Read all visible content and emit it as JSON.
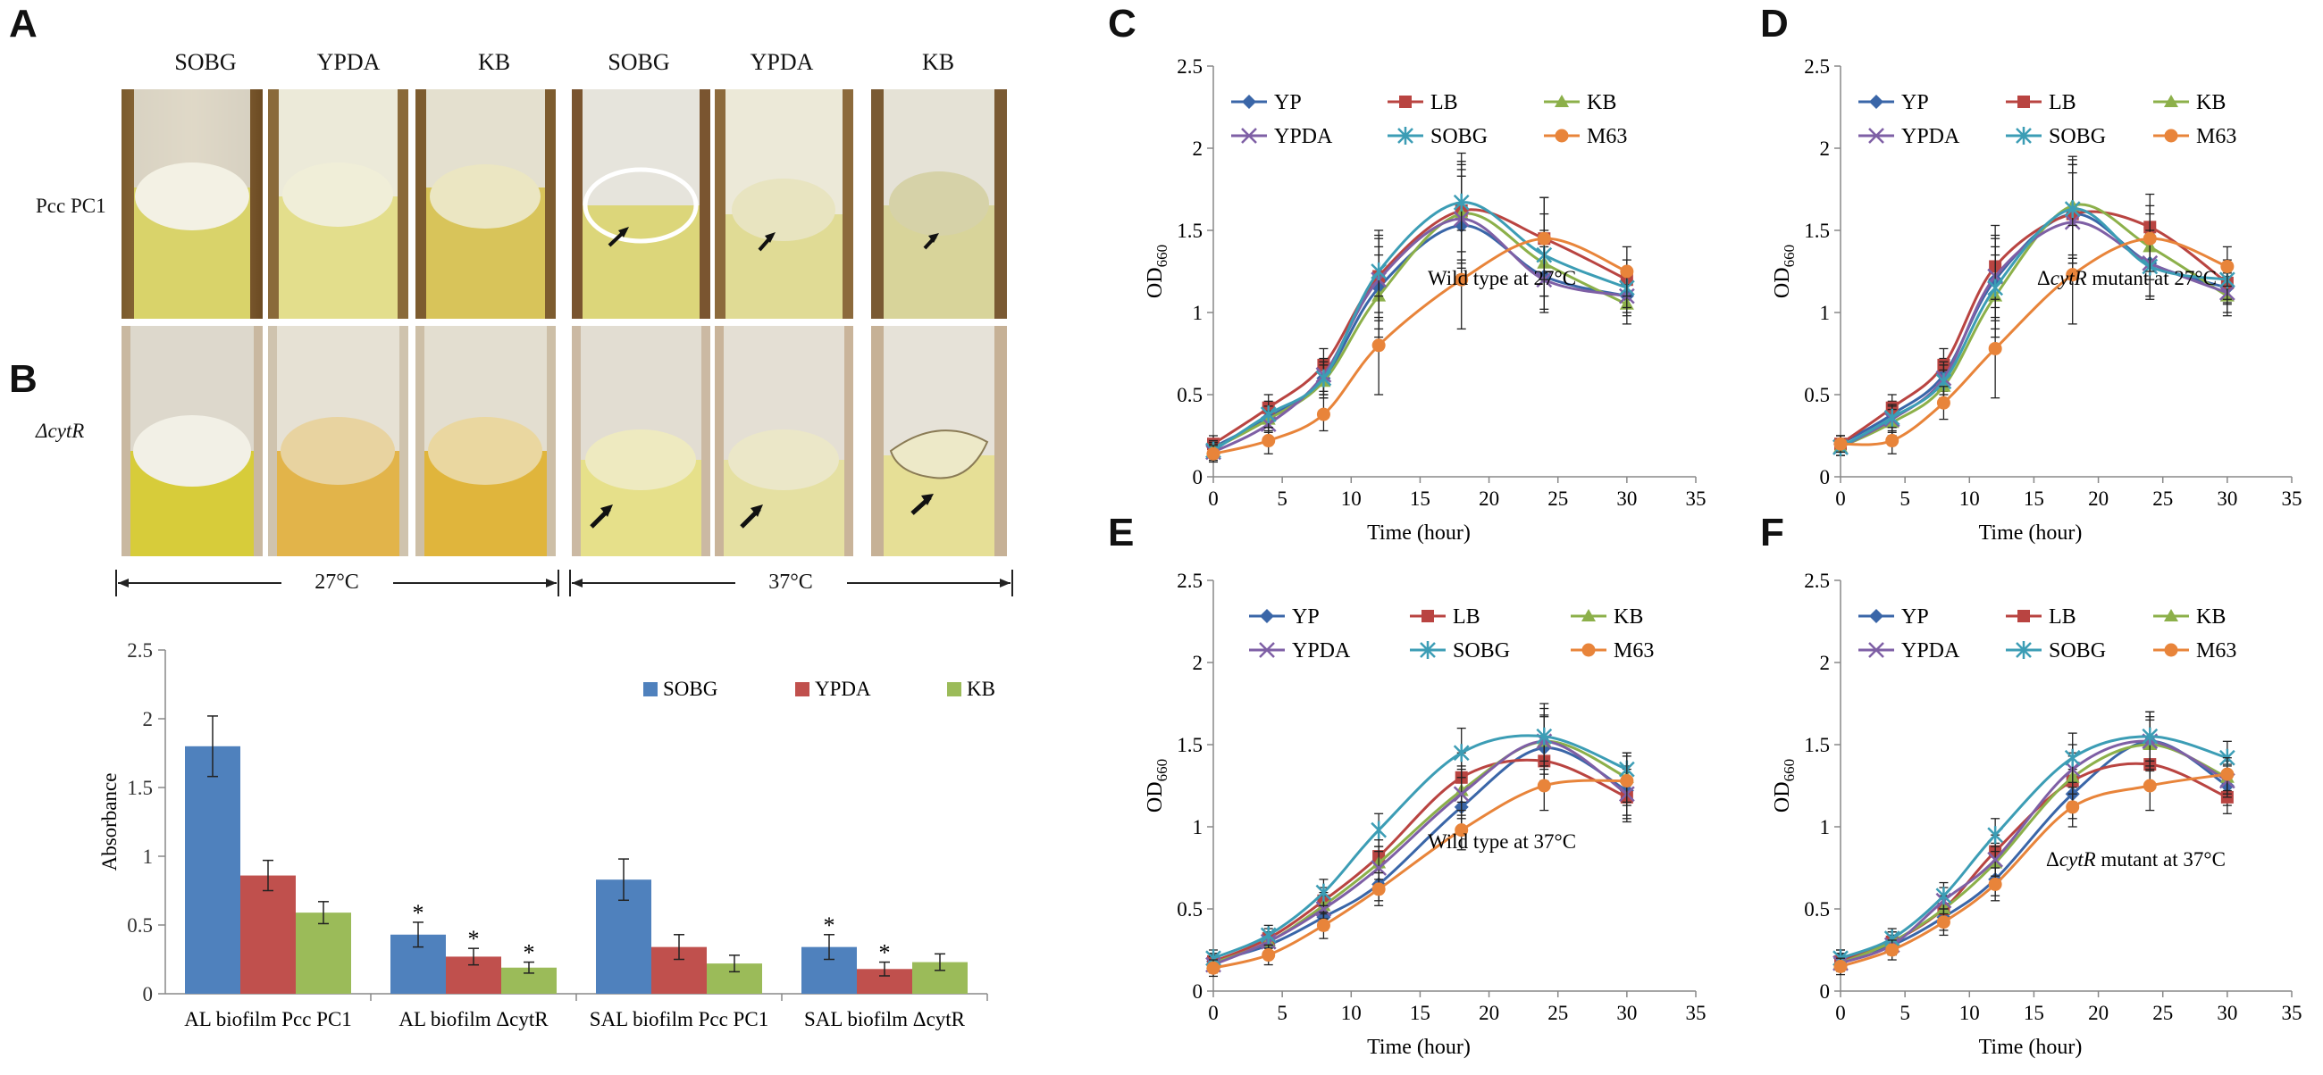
{
  "panel_labels": {
    "a": "A",
    "b": "B",
    "c": "C",
    "d": "D",
    "e": "E",
    "f": "F"
  },
  "panelA": {
    "columns": [
      "SOBG",
      "YPDA",
      "KB",
      "SOBG",
      "YPDA",
      "KB"
    ],
    "rows": [
      "Pcc PC1",
      "ΔcytR"
    ],
    "temperatures": [
      "27°C",
      "37°C"
    ]
  },
  "chart_data": [
    {
      "id": "B",
      "type": "bar",
      "title": "",
      "xlabel": "",
      "ylabel": "Absorbance",
      "ylim": [
        0,
        2.5
      ],
      "yticks": [
        "0",
        "0.5",
        "1",
        "1.5",
        "2",
        "2.5"
      ],
      "categories": [
        "AL biofilm Pcc PC1",
        "AL biofilm ΔcytR",
        "SAL biofilm Pcc PC1",
        "SAL biofilm ΔcytR"
      ],
      "series": [
        {
          "name": "SOBG",
          "color": "#4F81BD",
          "values": [
            1.8,
            0.43,
            0.83,
            0.34
          ],
          "errors": [
            0.22,
            0.09,
            0.15,
            0.09
          ]
        },
        {
          "name": "YPDA",
          "color": "#C0504D",
          "values": [
            0.86,
            0.27,
            0.34,
            0.18
          ],
          "errors": [
            0.11,
            0.06,
            0.09,
            0.05
          ]
        },
        {
          "name": "KB",
          "color": "#9BBB59",
          "values": [
            0.59,
            0.19,
            0.22,
            0.23
          ],
          "errors": [
            0.08,
            0.04,
            0.06,
            0.06
          ]
        }
      ],
      "significance": [
        [
          false,
          false,
          false
        ],
        [
          true,
          true,
          true
        ],
        [
          false,
          false,
          false
        ],
        [
          true,
          true,
          false
        ]
      ],
      "sig_mark": "*"
    },
    {
      "id": "C",
      "type": "line",
      "annotation": "Wild type at 27°C",
      "xlabel": "Time (hour)",
      "ylabel": "OD",
      "ylabel_sub": "660",
      "xlim": [
        0,
        35
      ],
      "ylim": [
        0,
        2.5
      ],
      "xticks": [
        "0",
        "5",
        "10",
        "15",
        "20",
        "25",
        "30",
        "35"
      ],
      "yticks": [
        "0",
        "0.5",
        "1",
        "1.5",
        "2",
        "2.5"
      ],
      "x": [
        0,
        4,
        8,
        12,
        18,
        24,
        30
      ],
      "series": [
        {
          "name": "YP",
          "color": "#3A66A8",
          "marker": "diamond",
          "values": [
            0.18,
            0.36,
            0.6,
            1.15,
            1.53,
            1.22,
            1.1
          ],
          "errors": [
            0.05,
            0.08,
            0.1,
            0.25,
            0.3,
            0.2,
            0.1
          ]
        },
        {
          "name": "LB",
          "color": "#B94441",
          "marker": "square",
          "values": [
            0.2,
            0.42,
            0.68,
            1.22,
            1.62,
            1.45,
            1.2
          ],
          "errors": [
            0.05,
            0.08,
            0.1,
            0.25,
            0.3,
            0.25,
            0.12
          ]
        },
        {
          "name": "KB",
          "color": "#8CB04A",
          "marker": "triangle",
          "values": [
            0.17,
            0.35,
            0.58,
            1.1,
            1.6,
            1.3,
            1.05
          ],
          "errors": [
            0.05,
            0.08,
            0.1,
            0.25,
            0.3,
            0.2,
            0.12
          ]
        },
        {
          "name": "YPDA",
          "color": "#7E5FA5",
          "marker": "x",
          "values": [
            0.15,
            0.32,
            0.62,
            1.2,
            1.57,
            1.2,
            1.1
          ],
          "errors": [
            0.05,
            0.08,
            0.1,
            0.25,
            0.3,
            0.2,
            0.12
          ]
        },
        {
          "name": "SOBG",
          "color": "#3C9DB5",
          "marker": "star",
          "values": [
            0.16,
            0.38,
            0.6,
            1.25,
            1.67,
            1.35,
            1.15
          ],
          "errors": [
            0.05,
            0.08,
            0.1,
            0.25,
            0.3,
            0.25,
            0.12
          ]
        },
        {
          "name": "M63",
          "color": "#E8843A",
          "marker": "circle",
          "values": [
            0.14,
            0.22,
            0.38,
            0.8,
            1.2,
            1.45,
            1.25
          ],
          "errors": [
            0.05,
            0.08,
            0.1,
            0.3,
            0.3,
            0.25,
            0.15
          ]
        }
      ]
    },
    {
      "id": "D",
      "type": "line",
      "annotation_prefix": "Δ",
      "annotation_italic": "cytR",
      "annotation_suffix": " mutant at 27°C",
      "xlabel": "Time (hour)",
      "ylabel": "OD",
      "ylabel_sub": "660",
      "xlim": [
        0,
        35
      ],
      "ylim": [
        0,
        2.5
      ],
      "xticks": [
        "0",
        "5",
        "10",
        "15",
        "20",
        "25",
        "30",
        "35"
      ],
      "yticks": [
        "0",
        "0.5",
        "1",
        "1.5",
        "2",
        "2.5"
      ],
      "x": [
        0,
        4,
        8,
        12,
        18,
        24,
        30
      ],
      "series": [
        {
          "name": "YP",
          "color": "#3A66A8",
          "marker": "diamond",
          "values": [
            0.2,
            0.38,
            0.62,
            1.2,
            1.6,
            1.3,
            1.15
          ],
          "errors": [
            0.05,
            0.08,
            0.1,
            0.25,
            0.3,
            0.2,
            0.1
          ]
        },
        {
          "name": "LB",
          "color": "#B94441",
          "marker": "square",
          "values": [
            0.2,
            0.42,
            0.68,
            1.28,
            1.6,
            1.52,
            1.18
          ],
          "errors": [
            0.05,
            0.08,
            0.1,
            0.25,
            0.3,
            0.2,
            0.12
          ]
        },
        {
          "name": "KB",
          "color": "#8CB04A",
          "marker": "triangle",
          "values": [
            0.18,
            0.33,
            0.55,
            1.1,
            1.65,
            1.4,
            1.1
          ],
          "errors": [
            0.05,
            0.08,
            0.1,
            0.25,
            0.3,
            0.2,
            0.12
          ]
        },
        {
          "name": "YPDA",
          "color": "#7E5FA5",
          "marker": "x",
          "values": [
            0.18,
            0.35,
            0.6,
            1.22,
            1.55,
            1.3,
            1.12
          ],
          "errors": [
            0.05,
            0.08,
            0.1,
            0.25,
            0.3,
            0.2,
            0.12
          ]
        },
        {
          "name": "SOBG",
          "color": "#3C9DB5",
          "marker": "star",
          "values": [
            0.18,
            0.36,
            0.58,
            1.15,
            1.63,
            1.28,
            1.2
          ],
          "errors": [
            0.05,
            0.08,
            0.1,
            0.25,
            0.3,
            0.2,
            0.12
          ]
        },
        {
          "name": "M63",
          "color": "#E8843A",
          "marker": "circle",
          "values": [
            0.2,
            0.22,
            0.45,
            0.78,
            1.23,
            1.45,
            1.28
          ],
          "errors": [
            0.05,
            0.08,
            0.1,
            0.3,
            0.3,
            0.2,
            0.12
          ]
        }
      ]
    },
    {
      "id": "E",
      "type": "line",
      "annotation": "Wild type at 37°C",
      "xlabel": "Time (hour)",
      "ylabel": "OD",
      "ylabel_sub": "660",
      "xlim": [
        0,
        35
      ],
      "ylim": [
        0,
        2.5
      ],
      "xticks": [
        "0",
        "5",
        "10",
        "15",
        "20",
        "25",
        "30",
        "35"
      ],
      "yticks": [
        "0",
        "0.5",
        "1",
        "1.5",
        "2",
        "2.5"
      ],
      "x": [
        0,
        4,
        8,
        12,
        18,
        24,
        30
      ],
      "series": [
        {
          "name": "YP",
          "color": "#3A66A8",
          "marker": "diamond",
          "values": [
            0.18,
            0.28,
            0.45,
            0.65,
            1.12,
            1.48,
            1.22
          ],
          "errors": [
            0.05,
            0.06,
            0.08,
            0.1,
            0.15,
            0.2,
            0.15
          ]
        },
        {
          "name": "LB",
          "color": "#B94441",
          "marker": "square",
          "values": [
            0.18,
            0.32,
            0.55,
            0.82,
            1.3,
            1.4,
            1.18
          ],
          "errors": [
            0.05,
            0.06,
            0.08,
            0.1,
            0.15,
            0.15,
            0.15
          ]
        },
        {
          "name": "KB",
          "color": "#8CB04A",
          "marker": "triangle",
          "values": [
            0.17,
            0.3,
            0.52,
            0.78,
            1.22,
            1.52,
            1.3
          ],
          "errors": [
            0.05,
            0.06,
            0.08,
            0.1,
            0.15,
            0.15,
            0.15
          ]
        },
        {
          "name": "YPDA",
          "color": "#7E5FA5",
          "marker": "x",
          "values": [
            0.16,
            0.3,
            0.5,
            0.75,
            1.2,
            1.52,
            1.2
          ],
          "errors": [
            0.05,
            0.06,
            0.08,
            0.1,
            0.15,
            0.2,
            0.15
          ]
        },
        {
          "name": "SOBG",
          "color": "#3C9DB5",
          "marker": "star",
          "values": [
            0.2,
            0.34,
            0.6,
            0.98,
            1.45,
            1.55,
            1.35
          ],
          "errors": [
            0.05,
            0.06,
            0.08,
            0.1,
            0.15,
            0.2,
            0.1
          ]
        },
        {
          "name": "M63",
          "color": "#E8843A",
          "marker": "circle",
          "values": [
            0.14,
            0.22,
            0.4,
            0.62,
            0.98,
            1.25,
            1.28
          ],
          "errors": [
            0.05,
            0.06,
            0.08,
            0.1,
            0.12,
            0.15,
            0.15
          ]
        }
      ]
    },
    {
      "id": "F",
      "type": "line",
      "annotation_prefix": "Δ",
      "annotation_italic": "cytR",
      "annotation_suffix": " mutant at 37°C",
      "xlabel": "Time (hour)",
      "ylabel": "OD",
      "ylabel_sub": "660",
      "xlim": [
        0,
        35
      ],
      "ylim": [
        0,
        2.5
      ],
      "xticks": [
        "0",
        "5",
        "10",
        "15",
        "20",
        "25",
        "30",
        "35"
      ],
      "yticks": [
        "0",
        "0.5",
        "1",
        "1.5",
        "2",
        "2.5"
      ],
      "x": [
        0,
        4,
        8,
        12,
        18,
        24,
        30
      ],
      "series": [
        {
          "name": "YP",
          "color": "#3A66A8",
          "marker": "diamond",
          "values": [
            0.2,
            0.28,
            0.45,
            0.68,
            1.2,
            1.52,
            1.25
          ],
          "errors": [
            0.05,
            0.06,
            0.08,
            0.1,
            0.15,
            0.18,
            0.12
          ]
        },
        {
          "name": "LB",
          "color": "#B94441",
          "marker": "square",
          "values": [
            0.18,
            0.3,
            0.5,
            0.85,
            1.28,
            1.38,
            1.18
          ],
          "errors": [
            0.05,
            0.06,
            0.08,
            0.1,
            0.15,
            0.15,
            0.1
          ]
        },
        {
          "name": "KB",
          "color": "#8CB04A",
          "marker": "triangle",
          "values": [
            0.17,
            0.3,
            0.5,
            0.78,
            1.3,
            1.5,
            1.3
          ],
          "errors": [
            0.05,
            0.06,
            0.08,
            0.1,
            0.15,
            0.15,
            0.1
          ]
        },
        {
          "name": "YPDA",
          "color": "#7E5FA5",
          "marker": "x",
          "values": [
            0.17,
            0.28,
            0.55,
            0.8,
            1.35,
            1.52,
            1.28
          ],
          "errors": [
            0.05,
            0.06,
            0.08,
            0.1,
            0.15,
            0.15,
            0.1
          ]
        },
        {
          "name": "SOBG",
          "color": "#3C9DB5",
          "marker": "star",
          "values": [
            0.2,
            0.32,
            0.58,
            0.95,
            1.42,
            1.55,
            1.42
          ],
          "errors": [
            0.05,
            0.06,
            0.08,
            0.1,
            0.15,
            0.15,
            0.1
          ]
        },
        {
          "name": "M63",
          "color": "#E8843A",
          "marker": "circle",
          "values": [
            0.15,
            0.25,
            0.42,
            0.65,
            1.12,
            1.25,
            1.32
          ],
          "errors": [
            0.05,
            0.06,
            0.08,
            0.1,
            0.12,
            0.15,
            0.1
          ]
        }
      ]
    }
  ]
}
